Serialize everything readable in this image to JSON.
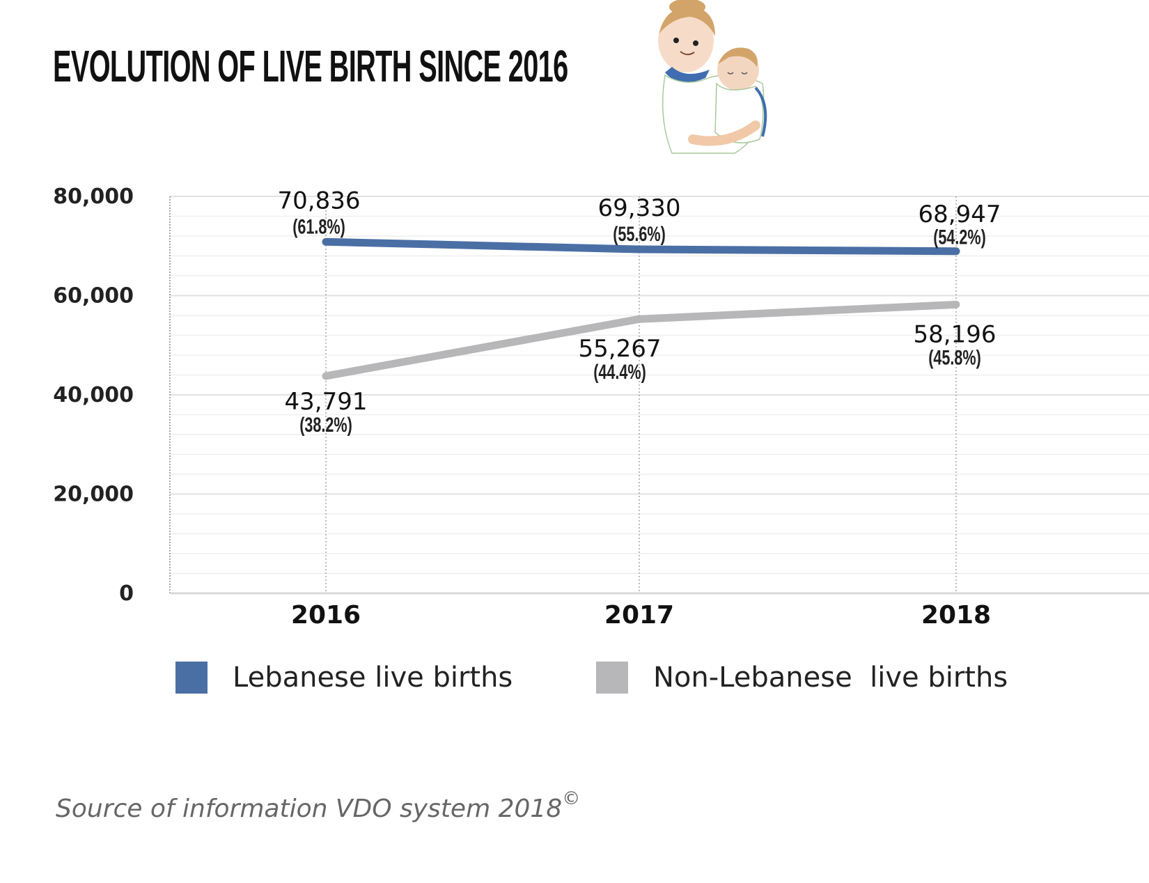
{
  "title": "EVOLUTION OF LIVE BIRTH SINCE 2016",
  "illustration": "mother-holding-baby",
  "chart_data": {
    "type": "line",
    "title": "EVOLUTION OF LIVE BIRTH SINCE 2016",
    "xlabel": "",
    "ylabel": "",
    "categories": [
      "2016",
      "2017",
      "2018"
    ],
    "ylim": [
      0,
      80000
    ],
    "yticks": [
      0,
      20000,
      40000,
      60000,
      80000
    ],
    "ytick_labels": [
      "0",
      "20,000",
      "40,000",
      "60,000",
      "80,000"
    ],
    "grid": true,
    "legend_position": "bottom",
    "series": [
      {
        "name": "Lebanese live births",
        "color": "#4a6fa5",
        "values": [
          70836,
          69330,
          68947
        ],
        "labels": [
          "70,836",
          "69,330",
          "68,947"
        ],
        "percentages": [
          "(61.8%)",
          "(55.6%)",
          "(54.2%)"
        ],
        "label_position": "above"
      },
      {
        "name": "Non-Lebanese  live births",
        "color": "#b7b7b9",
        "values": [
          43791,
          55267,
          58196
        ],
        "labels": [
          "43,791",
          "55,267",
          "58,196"
        ],
        "percentages": [
          "(38.2%)",
          "(44.4%)",
          "(45.8%)"
        ],
        "label_position": "below"
      }
    ]
  },
  "legend": [
    {
      "label": "Lebanese live births",
      "color": "#4a6fa5"
    },
    {
      "label": "Non-Lebanese  live births",
      "color": "#b7b7b9"
    }
  ],
  "source": {
    "text": "Source of information VDO system 2018",
    "mark": "©"
  }
}
